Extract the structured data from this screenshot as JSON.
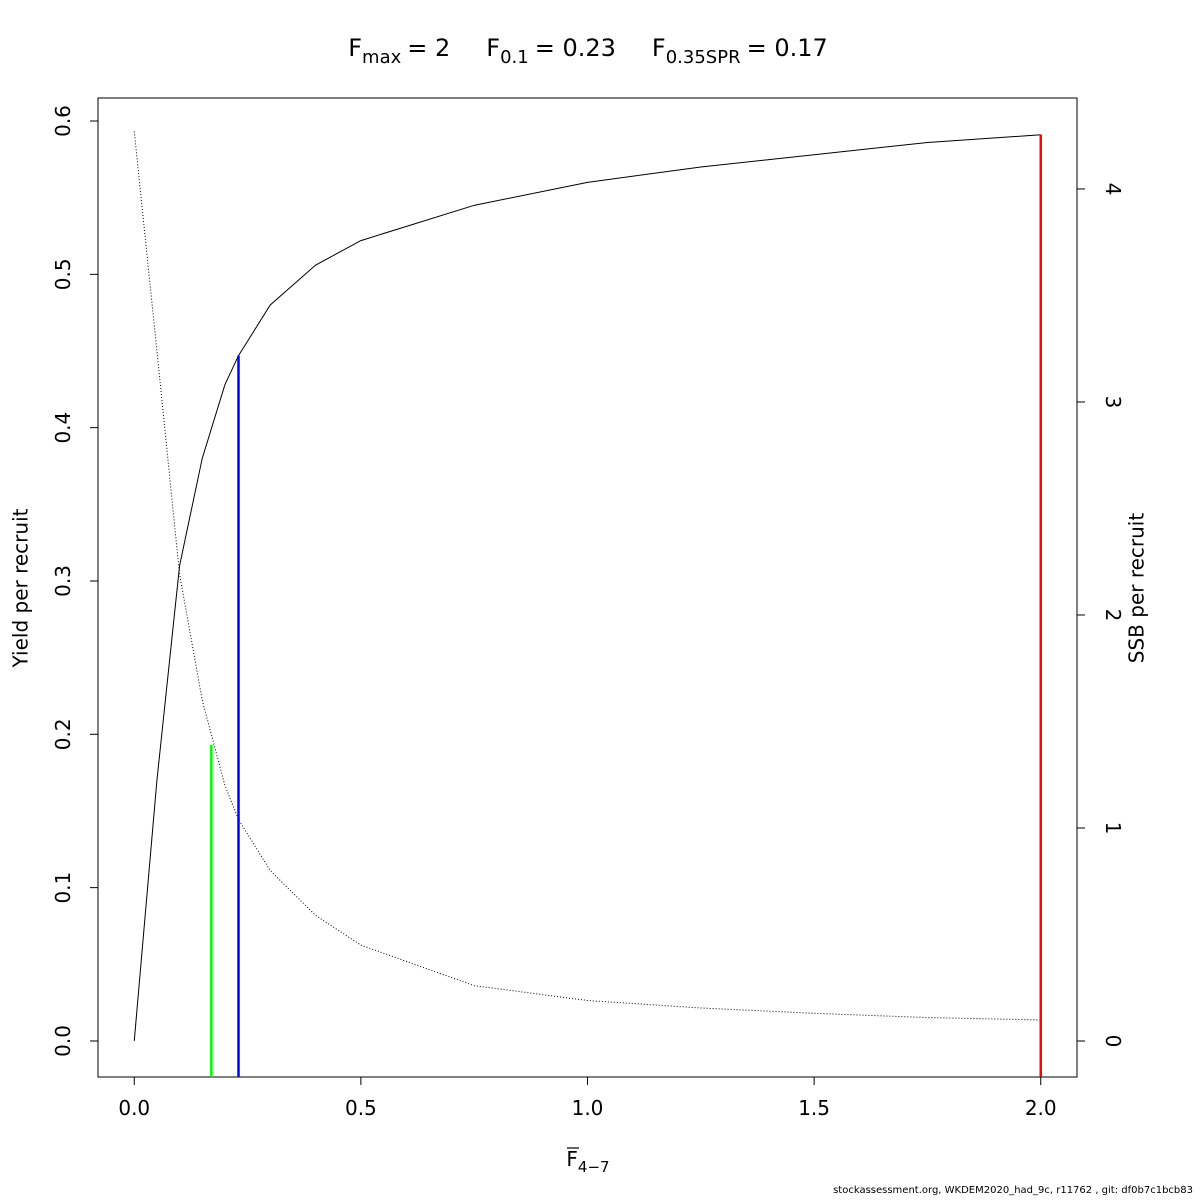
{
  "chart_data": {
    "type": "line",
    "title": [
      {
        "symbol": "F",
        "subscript": "max",
        "text": "= 2"
      },
      {
        "symbol": "F",
        "subscript": "0.1",
        "text": "= 0.23"
      },
      {
        "symbol": "F",
        "subscript": "0.35SPR",
        "text": "= 0.17"
      }
    ],
    "x_label": {
      "symbol": "F",
      "subscript": "4−7"
    },
    "y_label": "Yield per recruit",
    "y2_label": "SSB per recruit",
    "footer": "stockassessment.org, WKDEM2020_had_9c, r11762 , git: df0b7c1bcb83",
    "x": [
      0,
      0.05,
      0.1,
      0.15,
      0.2,
      0.23,
      0.3,
      0.4,
      0.5,
      0.75,
      1.0,
      1.25,
      1.5,
      1.75,
      2.0
    ],
    "series": [
      {
        "name": "Yield per recruit",
        "color": "#000000",
        "dash": "solid",
        "values": [
          0,
          0.17,
          0.31,
          0.38,
          0.428,
          0.447,
          0.48,
          0.506,
          0.522,
          0.545,
          0.56,
          0.57,
          0.578,
          0.586,
          0.591
        ]
      },
      {
        "name": "SSB per recruit",
        "color": "#000000",
        "dash": "dotted",
        "axis": "y2",
        "values": [
          4.27,
          3.24,
          2.19,
          1.6,
          1.2,
          1.04,
          0.8,
          0.59,
          0.45,
          0.26,
          0.19,
          0.155,
          0.13,
          0.11,
          0.099
        ]
      }
    ],
    "reference_lines": [
      {
        "x": 0.17,
        "top": 1.39,
        "axis": "y2",
        "color": "#00ff00"
      },
      {
        "x": 0.23,
        "top": 0.447,
        "axis": "y",
        "color": "#0000ff"
      },
      {
        "x": 2.0,
        "top": 0.591,
        "axis": "y",
        "color": "#ff0000"
      }
    ],
    "xlim": [
      -0.08,
      2.08
    ],
    "ylim": [
      -0.0235,
      0.615
    ],
    "y2lim": [
      -0.169,
      4.427
    ],
    "xticks": [
      {
        "value": 0,
        "label": "0.0"
      },
      {
        "value": 0.5,
        "label": "0.5"
      },
      {
        "value": 1,
        "label": "1.0"
      },
      {
        "value": 1.5,
        "label": "1.5"
      },
      {
        "value": 2,
        "label": "2.0"
      }
    ],
    "yticks": [
      {
        "value": 0,
        "label": "0.0"
      },
      0.1,
      0.2,
      0.3,
      0.4,
      0.5,
      0.6
    ],
    "y2ticks": [
      0,
      1,
      2,
      3,
      4
    ],
    "grid": false
  }
}
